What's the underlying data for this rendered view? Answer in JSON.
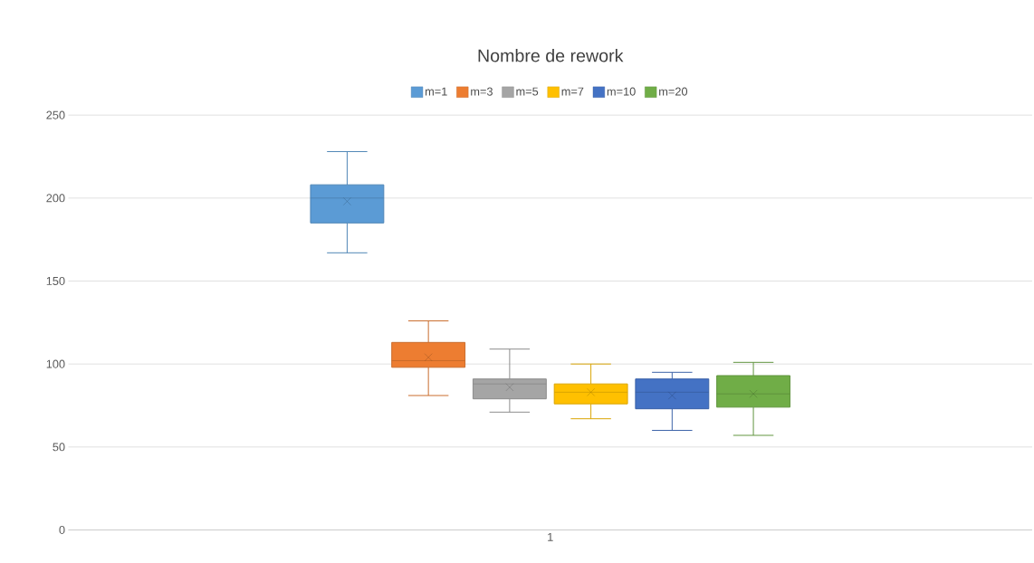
{
  "chart_data": {
    "type": "box",
    "title": "Nombre de rework",
    "categories": [
      "1"
    ],
    "ylim": [
      0,
      250
    ],
    "yticks": [
      0,
      50,
      100,
      150,
      200,
      250
    ],
    "grid": "y",
    "legend": "top",
    "series": [
      {
        "name": "m=1",
        "color": "#5b9bd5",
        "boxes": [
          {
            "low": 167,
            "q1": 185,
            "median": 200,
            "q3": 208,
            "high": 228,
            "mean": 198
          }
        ]
      },
      {
        "name": "m=3",
        "color": "#ed7d31",
        "boxes": [
          {
            "low": 81,
            "q1": 98,
            "median": 102,
            "q3": 113,
            "high": 126,
            "mean": 104
          }
        ]
      },
      {
        "name": "m=5",
        "color": "#a5a5a5",
        "boxes": [
          {
            "low": 71,
            "q1": 79,
            "median": 88,
            "q3": 91,
            "high": 109,
            "mean": 86
          }
        ]
      },
      {
        "name": "m=7",
        "color": "#ffc000",
        "boxes": [
          {
            "low": 67,
            "q1": 76,
            "median": 83,
            "q3": 88,
            "high": 100,
            "mean": 83
          }
        ]
      },
      {
        "name": "m=10",
        "color": "#4472c4",
        "boxes": [
          {
            "low": 60,
            "q1": 73,
            "median": 83,
            "q3": 91,
            "high": 95,
            "mean": 81
          }
        ]
      },
      {
        "name": "m=20",
        "color": "#70ad47",
        "boxes": [
          {
            "low": 57,
            "q1": 74,
            "median": 82,
            "q3": 93,
            "high": 101,
            "mean": 82
          }
        ]
      }
    ]
  }
}
